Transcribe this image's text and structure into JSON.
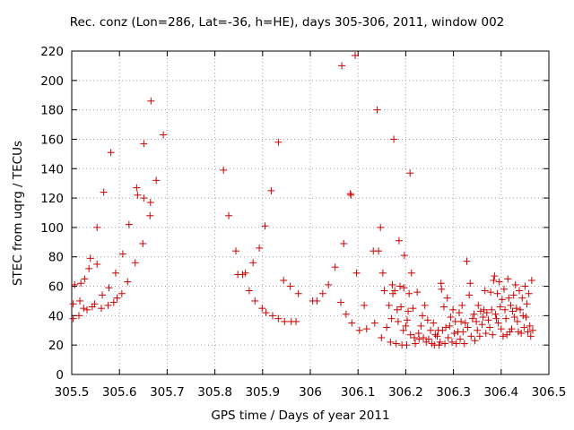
{
  "chart_data": {
    "type": "scatter",
    "title": "Rec. conz (Lon=286, Lat=-36, h=HE), days 305-306, 2011, window 002",
    "xlabel": "GPS time / Days of year 2011",
    "ylabel": "STEC from uqrg / TECUs",
    "xlim": [
      305.5,
      306.5
    ],
    "ylim": [
      0,
      220
    ],
    "xticks": [
      305.5,
      305.6,
      305.7,
      305.8,
      305.9,
      306.0,
      306.1,
      306.2,
      306.3,
      306.4,
      306.5
    ],
    "xtick_labels": [
      "305.5",
      "305.6",
      "305.7",
      "305.8",
      "305.9",
      "306",
      "306.1",
      "306.2",
      "306.3",
      "306.4",
      "306.5"
    ],
    "yticks": [
      0,
      20,
      40,
      60,
      80,
      100,
      120,
      140,
      160,
      180,
      200,
      220
    ],
    "ytick_labels": [
      "0",
      "20",
      "40",
      "60",
      "80",
      "100",
      "120",
      "140",
      "160",
      "180",
      "200",
      "220"
    ],
    "grid": true,
    "marker": "+",
    "marker_color": "#cc0000",
    "series": [
      {
        "name": "STEC",
        "points": [
          [
            305.503,
            38
          ],
          [
            305.503,
            48
          ],
          [
            305.506,
            61
          ],
          [
            305.515,
            40
          ],
          [
            305.517,
            50
          ],
          [
            305.519,
            62
          ],
          [
            305.525,
            45
          ],
          [
            305.527,
            65
          ],
          [
            305.532,
            44
          ],
          [
            305.536,
            72
          ],
          [
            305.539,
            79
          ],
          [
            305.543,
            46
          ],
          [
            305.548,
            48
          ],
          [
            305.553,
            75
          ],
          [
            305.553,
            100
          ],
          [
            305.562,
            45
          ],
          [
            305.564,
            54
          ],
          [
            305.567,
            124
          ],
          [
            305.576,
            47
          ],
          [
            305.578,
            59
          ],
          [
            305.582,
            151
          ],
          [
            305.588,
            49
          ],
          [
            305.592,
            69
          ],
          [
            305.595,
            52
          ],
          [
            305.605,
            55
          ],
          [
            305.607,
            82
          ],
          [
            305.617,
            63
          ],
          [
            305.62,
            102
          ],
          [
            305.633,
            76
          ],
          [
            305.636,
            127
          ],
          [
            305.638,
            122
          ],
          [
            305.649,
            89
          ],
          [
            305.651,
            120
          ],
          [
            305.651,
            157
          ],
          [
            305.664,
            108
          ],
          [
            305.665,
            117
          ],
          [
            305.666,
            186
          ],
          [
            305.677,
            132
          ],
          [
            305.692,
            163
          ],
          [
            305.818,
            139
          ],
          [
            305.829,
            108
          ],
          [
            305.844,
            84
          ],
          [
            305.848,
            68
          ],
          [
            305.858,
            68
          ],
          [
            305.864,
            69
          ],
          [
            305.872,
            57
          ],
          [
            305.88,
            76
          ],
          [
            305.884,
            50
          ],
          [
            305.893,
            86
          ],
          [
            305.899,
            45
          ],
          [
            305.905,
            101
          ],
          [
            305.907,
            42
          ],
          [
            305.918,
            125
          ],
          [
            305.921,
            40
          ],
          [
            305.933,
            158
          ],
          [
            305.933,
            38
          ],
          [
            305.944,
            64
          ],
          [
            305.946,
            36
          ],
          [
            305.958,
            60
          ],
          [
            305.96,
            36
          ],
          [
            305.97,
            36
          ],
          [
            305.975,
            55
          ],
          [
            306.005,
            50
          ],
          [
            306.014,
            50
          ],
          [
            306.026,
            55
          ],
          [
            306.038,
            61
          ],
          [
            306.052,
            73
          ],
          [
            306.064,
            49
          ],
          [
            306.066,
            210
          ],
          [
            306.07,
            89
          ],
          [
            306.075,
            41
          ],
          [
            306.084,
            123
          ],
          [
            306.085,
            122
          ],
          [
            306.087,
            35
          ],
          [
            306.094,
            217
          ],
          [
            306.097,
            69
          ],
          [
            306.103,
            30
          ],
          [
            306.113,
            47
          ],
          [
            306.118,
            31
          ],
          [
            306.132,
            84
          ],
          [
            306.135,
            35
          ],
          [
            306.14,
            180
          ],
          [
            306.143,
            84
          ],
          [
            306.147,
            100
          ],
          [
            306.149,
            25
          ],
          [
            306.152,
            69
          ],
          [
            306.155,
            57
          ],
          [
            306.16,
            32
          ],
          [
            306.165,
            47
          ],
          [
            306.168,
            22
          ],
          [
            306.17,
            38
          ],
          [
            306.172,
            61
          ],
          [
            306.173,
            55
          ],
          [
            306.175,
            160
          ],
          [
            306.177,
            57
          ],
          [
            306.18,
            21
          ],
          [
            306.182,
            44
          ],
          [
            306.184,
            36
          ],
          [
            306.186,
            91
          ],
          [
            306.188,
            60
          ],
          [
            306.19,
            46
          ],
          [
            306.192,
            20
          ],
          [
            306.195,
            30
          ],
          [
            306.196,
            59
          ],
          [
            306.197,
            81
          ],
          [
            306.2,
            33
          ],
          [
            306.202,
            20
          ],
          [
            306.203,
            37
          ],
          [
            306.205,
            43
          ],
          [
            306.207,
            55
          ],
          [
            306.209,
            137
          ],
          [
            306.21,
            27
          ],
          [
            306.212,
            69
          ],
          [
            306.215,
            45
          ],
          [
            306.218,
            25
          ],
          [
            306.22,
            21
          ],
          [
            306.224,
            56
          ],
          [
            306.227,
            28
          ],
          [
            306.228,
            24
          ],
          [
            306.232,
            33
          ],
          [
            306.235,
            40
          ],
          [
            306.237,
            25
          ],
          [
            306.24,
            47
          ],
          [
            306.243,
            22
          ],
          [
            306.246,
            37
          ],
          [
            306.248,
            24
          ],
          [
            306.252,
            30
          ],
          [
            306.255,
            21
          ],
          [
            306.258,
            35
          ],
          [
            306.26,
            20
          ],
          [
            306.262,
            27
          ],
          [
            306.266,
            26
          ],
          [
            306.268,
            30
          ],
          [
            306.27,
            20
          ],
          [
            306.272,
            22
          ],
          [
            306.274,
            62
          ],
          [
            306.275,
            58
          ],
          [
            306.277,
            30
          ],
          [
            306.28,
            46
          ],
          [
            306.282,
            21
          ],
          [
            306.284,
            32
          ],
          [
            306.287,
            52
          ],
          [
            306.289,
            25
          ],
          [
            306.292,
            33
          ],
          [
            306.294,
            39
          ],
          [
            306.297,
            22
          ],
          [
            306.299,
            44
          ],
          [
            306.302,
            28
          ],
          [
            306.304,
            36
          ],
          [
            306.306,
            21
          ],
          [
            306.309,
            29
          ],
          [
            306.312,
            42
          ],
          [
            306.314,
            24
          ],
          [
            306.316,
            36
          ],
          [
            306.318,
            47
          ],
          [
            306.32,
            29
          ],
          [
            306.323,
            21
          ],
          [
            306.325,
            35
          ],
          [
            306.328,
            77
          ],
          [
            306.33,
            32
          ],
          [
            306.333,
            54
          ],
          [
            306.335,
            62
          ],
          [
            306.337,
            26
          ],
          [
            306.34,
            38
          ],
          [
            306.343,
            41
          ],
          [
            306.345,
            23
          ],
          [
            306.348,
            36
          ],
          [
            306.35,
            30
          ],
          [
            306.352,
            47
          ],
          [
            306.355,
            26
          ],
          [
            306.357,
            43
          ],
          [
            306.36,
            34
          ],
          [
            306.362,
            39
          ],
          [
            306.364,
            44
          ],
          [
            306.366,
            57
          ],
          [
            306.368,
            28
          ],
          [
            306.37,
            42
          ],
          [
            306.373,
            37
          ],
          [
            306.376,
            32
          ],
          [
            306.378,
            56
          ],
          [
            306.38,
            44
          ],
          [
            306.382,
            27
          ],
          [
            306.384,
            64
          ],
          [
            306.386,
            67
          ],
          [
            306.388,
            41
          ],
          [
            306.39,
            38
          ],
          [
            306.392,
            55
          ],
          [
            306.394,
            35
          ],
          [
            306.396,
            63
          ],
          [
            306.398,
            46
          ],
          [
            306.4,
            31
          ],
          [
            306.402,
            51
          ],
          [
            306.404,
            26
          ],
          [
            306.406,
            58
          ],
          [
            306.408,
            44
          ],
          [
            306.41,
            38
          ],
          [
            306.412,
            27
          ],
          [
            306.414,
            65
          ],
          [
            306.416,
            52
          ],
          [
            306.418,
            29
          ],
          [
            306.42,
            47
          ],
          [
            306.422,
            31
          ],
          [
            306.424,
            43
          ],
          [
            306.426,
            54
          ],
          [
            306.428,
            39
          ],
          [
            306.43,
            61
          ],
          [
            306.432,
            45
          ],
          [
            306.434,
            36
          ],
          [
            306.436,
            29
          ],
          [
            306.438,
            57
          ],
          [
            306.44,
            44
          ],
          [
            306.442,
            28
          ],
          [
            306.444,
            52
          ],
          [
            306.446,
            40
          ],
          [
            306.448,
            32
          ],
          [
            306.45,
            60
          ],
          [
            306.452,
            39
          ],
          [
            306.454,
            48
          ],
          [
            306.456,
            29
          ],
          [
            306.458,
            55
          ],
          [
            306.46,
            33
          ],
          [
            306.462,
            26
          ],
          [
            306.464,
            64
          ],
          [
            306.466,
            30
          ]
        ]
      }
    ]
  }
}
